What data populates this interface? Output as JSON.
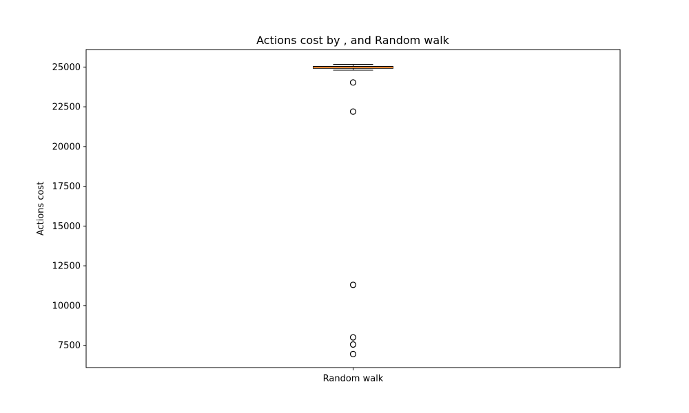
{
  "chart_data": {
    "type": "box",
    "title": "Actions cost by , and Random walk",
    "xlabel": "",
    "ylabel": "Actions cost",
    "categories": [
      "Random walk"
    ],
    "ylim": [
      6100,
      26100
    ],
    "yticks": [
      7500,
      10000,
      12500,
      15000,
      17500,
      20000,
      22500,
      25000
    ],
    "grid": false,
    "boxes": [
      {
        "name": "Random walk",
        "whisker_low": 24800,
        "q1": 24920,
        "median": 24980,
        "q3": 25040,
        "whisker_high": 25170,
        "outliers": [
          24030,
          22200,
          11300,
          8000,
          7550,
          6950
        ]
      }
    ],
    "colors": {
      "median": "#ff7f0e",
      "box_edge": "#000000",
      "outlier_edge": "#000000"
    }
  }
}
